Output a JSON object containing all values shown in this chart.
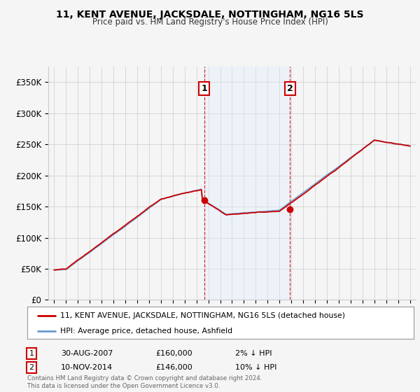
{
  "title": "11, KENT AVENUE, JACKSDALE, NOTTINGHAM, NG16 5LS",
  "subtitle": "Price paid vs. HM Land Registry's House Price Index (HPI)",
  "ylabel_ticks": [
    "£0",
    "£50K",
    "£100K",
    "£150K",
    "£200K",
    "£250K",
    "£300K",
    "£350K"
  ],
  "ylabel_values": [
    0,
    50000,
    100000,
    150000,
    200000,
    250000,
    300000,
    350000
  ],
  "ylim": [
    0,
    375000
  ],
  "legend_line1": "11, KENT AVENUE, JACKSDALE, NOTTINGHAM, NG16 5LS (detached house)",
  "legend_line2": "HPI: Average price, detached house, Ashfield",
  "sale1_label": "1",
  "sale1_date": "30-AUG-2007",
  "sale1_price": "£160,000",
  "sale1_hpi": "2% ↓ HPI",
  "sale2_label": "2",
  "sale2_date": "10-NOV-2014",
  "sale2_price": "£146,000",
  "sale2_hpi": "10% ↓ HPI",
  "footer": "Contains HM Land Registry data © Crown copyright and database right 2024.\nThis data is licensed under the Open Government Licence v3.0.",
  "color_red": "#cc0000",
  "color_blue": "#6699cc",
  "color_light_blue_fill": "#ddeeff",
  "background_color": "#f5f5f5",
  "grid_color": "#cccccc",
  "sale1_x_year": 2007.667,
  "sale2_x_year": 2014.875,
  "xlim_start": 1994.5,
  "xlim_end": 2025.5
}
